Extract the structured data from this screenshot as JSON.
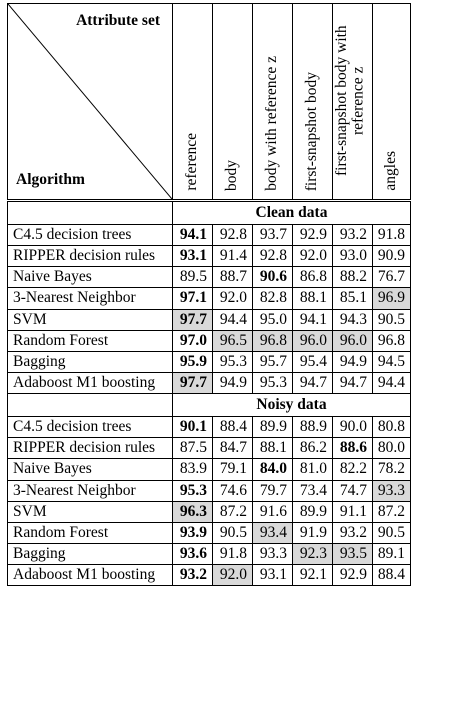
{
  "header": {
    "attribute_set_label": "Attribute set",
    "algorithm_label": "Algorithm",
    "columns": [
      {
        "label": "reference"
      },
      {
        "label": "body"
      },
      {
        "label": "body with reference z"
      },
      {
        "label": "first-snapshot body"
      },
      {
        "label": "first-snapshot body with reference z"
      },
      {
        "label": "angles"
      }
    ]
  },
  "sections": [
    {
      "title": "Clean data",
      "rows": [
        {
          "name": "C4.5 decision trees",
          "values": [
            "94.1",
            "92.8",
            "93.7",
            "92.9",
            "93.2",
            "91.8"
          ],
          "bold": [
            0
          ],
          "shaded": []
        },
        {
          "name": "RIPPER decision rules",
          "values": [
            "93.1",
            "91.4",
            "92.8",
            "92.0",
            "93.0",
            "90.9"
          ],
          "bold": [
            0
          ],
          "shaded": []
        },
        {
          "name": "Naive Bayes",
          "values": [
            "89.5",
            "88.7",
            "90.6",
            "86.8",
            "88.2",
            "76.7"
          ],
          "bold": [
            2
          ],
          "shaded": []
        },
        {
          "name": "3-Nearest Neighbor",
          "values": [
            "97.1",
            "92.0",
            "82.8",
            "88.1",
            "85.1",
            "96.9"
          ],
          "bold": [
            0
          ],
          "shaded": [
            5
          ]
        },
        {
          "name": "SVM",
          "values": [
            "97.7",
            "94.4",
            "95.0",
            "94.1",
            "94.3",
            "90.5"
          ],
          "bold": [
            0
          ],
          "shaded": [
            0
          ]
        },
        {
          "name": "Random Forest",
          "values": [
            "97.0",
            "96.5",
            "96.8",
            "96.0",
            "96.0",
            "96.8"
          ],
          "bold": [
            0
          ],
          "shaded": [
            1,
            2,
            3,
            4
          ]
        },
        {
          "name": "Bagging",
          "values": [
            "95.9",
            "95.3",
            "95.7",
            "95.4",
            "94.9",
            "94.5"
          ],
          "bold": [
            0
          ],
          "shaded": []
        },
        {
          "name": "Adaboost M1 boosting",
          "values": [
            "97.7",
            "94.9",
            "95.3",
            "94.7",
            "94.7",
            "94.4"
          ],
          "bold": [
            0
          ],
          "shaded": [
            0
          ]
        }
      ]
    },
    {
      "title": "Noisy data",
      "rows": [
        {
          "name": "C4.5 decision trees",
          "values": [
            "90.1",
            "88.4",
            "89.9",
            "88.9",
            "90.0",
            "80.8"
          ],
          "bold": [
            0
          ],
          "shaded": []
        },
        {
          "name": "RIPPER decision rules",
          "values": [
            "87.5",
            "84.7",
            "88.1",
            "86.2",
            "88.6",
            "80.0"
          ],
          "bold": [
            4
          ],
          "shaded": []
        },
        {
          "name": "Naive Bayes",
          "values": [
            "83.9",
            "79.1",
            "84.0",
            "81.0",
            "82.2",
            "78.2"
          ],
          "bold": [
            2
          ],
          "shaded": []
        },
        {
          "name": "3-Nearest Neighbor",
          "values": [
            "95.3",
            "74.6",
            "79.7",
            "73.4",
            "74.7",
            "93.3"
          ],
          "bold": [
            0
          ],
          "shaded": [
            5
          ]
        },
        {
          "name": "SVM",
          "values": [
            "96.3",
            "87.2",
            "91.6",
            "89.9",
            "91.1",
            "87.2"
          ],
          "bold": [
            0
          ],
          "shaded": [
            0
          ]
        },
        {
          "name": "Random Forest",
          "values": [
            "93.9",
            "90.5",
            "93.4",
            "91.9",
            "93.2",
            "90.5"
          ],
          "bold": [
            0
          ],
          "shaded": [
            2
          ]
        },
        {
          "name": "Bagging",
          "values": [
            "93.6",
            "91.8",
            "93.3",
            "92.3",
            "93.5",
            "89.1"
          ],
          "bold": [
            0
          ],
          "shaded": [
            3,
            4
          ]
        },
        {
          "name": "Adaboost M1 boosting",
          "values": [
            "93.2",
            "92.0",
            "93.1",
            "92.1",
            "92.9",
            "88.4"
          ],
          "bold": [
            0
          ],
          "shaded": [
            1
          ]
        }
      ]
    }
  ]
}
